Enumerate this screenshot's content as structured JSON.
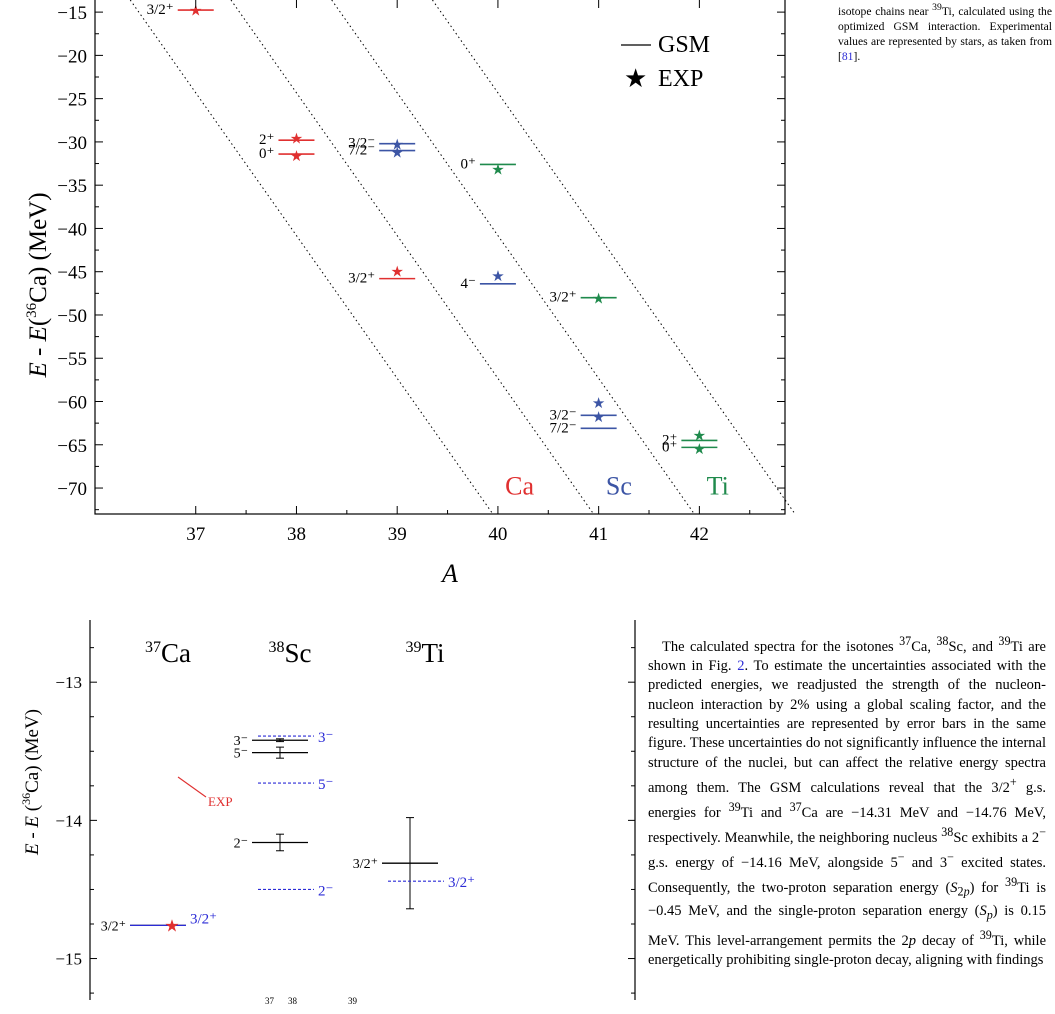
{
  "fig1": {
    "legend": {
      "gsm_label": "GSM",
      "exp_label": "EXP"
    },
    "chain_labels": [
      {
        "text": "Ca",
        "color": "#e03030",
        "x": 40.35,
        "y": -69.8
      },
      {
        "text": "Sc",
        "color": "#3c55a5",
        "x": 41.35,
        "y": -69.8
      },
      {
        "text": "Ti",
        "color": "#1f8a4c",
        "x": 42.35,
        "y": -69.8
      }
    ],
    "xlabel": "A",
    "ylabel": "E - E(36Ca) (MeV)",
    "chart_data": {
      "type": "scatter",
      "xlim": [
        36,
        42.85
      ],
      "ylim": [
        -73,
        -13.6
      ],
      "x_ticks": [
        "37",
        "38",
        "39",
        "40",
        "41",
        "42"
      ],
      "y_ticks": [
        "−15",
        "−20",
        "−25",
        "−30",
        "−35",
        "−40",
        "−45",
        "−50",
        "−55",
        "−60",
        "−65",
        "−70"
      ],
      "levels": [
        {
          "chain": "Ca",
          "A": 37,
          "gsm": -14.76,
          "exp": -14.8,
          "label": "3/2⁺",
          "color": "#e03030"
        },
        {
          "chain": "Ca",
          "A": 38,
          "gsm": -29.8,
          "exp": -29.6,
          "label": "2⁺",
          "color": "#e03030"
        },
        {
          "chain": "Ca",
          "A": 38,
          "gsm": -31.4,
          "exp": -31.6,
          "label": "0⁺",
          "color": "#e03030"
        },
        {
          "chain": "Ca",
          "A": 39,
          "gsm": -45.8,
          "exp": -45.0,
          "label": "3/2⁺",
          "color": "#e03030"
        },
        {
          "chain": "Sc",
          "A": 39,
          "gsm": -30.2,
          "exp": -30.3,
          "label": "3/2⁻",
          "color": "#3c55a5"
        },
        {
          "chain": "Sc",
          "A": 39,
          "gsm": -31.0,
          "exp": -31.2,
          "label": "7/2⁻",
          "color": "#3c55a5"
        },
        {
          "chain": "Sc",
          "A": 40,
          "gsm": -46.4,
          "exp": -45.5,
          "label": "4⁻",
          "color": "#3c55a5"
        },
        {
          "chain": "Sc",
          "A": 41,
          "gsm": -61.6,
          "exp": -60.2,
          "label": "3/2⁻",
          "color": "#3c55a5"
        },
        {
          "chain": "Sc",
          "A": 41,
          "gsm": -63.1,
          "exp": -61.8,
          "label": "7/2⁻",
          "color": "#3c55a5"
        },
        {
          "chain": "Ti",
          "A": 40,
          "gsm": -32.6,
          "exp": -33.2,
          "label": "0⁺",
          "color": "#1f8a4c"
        },
        {
          "chain": "Ti",
          "A": 41,
          "gsm": -48.0,
          "exp": -48.1,
          "label": "3/2⁺",
          "color": "#1f8a4c"
        },
        {
          "chain": "Ti",
          "A": 42,
          "gsm": -64.5,
          "exp": -63.9,
          "label": "2⁺",
          "color": "#1f8a4c"
        },
        {
          "chain": "Ti",
          "A": 42,
          "gsm": -65.3,
          "exp": -65.5,
          "label": "0⁺",
          "color": "#1f8a4c"
        }
      ],
      "guide_lines": [
        {
          "A0": 36.35,
          "E0": -13.6,
          "A1": 39.95,
          "E1": -73
        },
        {
          "A0": 37.35,
          "E0": -13.6,
          "A1": 40.95,
          "E1": -73
        },
        {
          "A0": 38.35,
          "E0": -13.6,
          "A1": 41.95,
          "E1": -73
        },
        {
          "A0": 39.35,
          "E0": -13.6,
          "A1": 42.95,
          "E1": -73
        }
      ]
    }
  },
  "fig2": {
    "ylabel": "E - E(36Ca) (MeV)",
    "exp_label": "EXP",
    "nuclei": [
      {
        "name": "Ca",
        "mass": "37"
      },
      {
        "name": "Sc",
        "mass": "38"
      },
      {
        "name": "Ti",
        "mass": "39"
      }
    ],
    "chart_data": {
      "type": "scatter",
      "ylim": [
        -15.3,
        -12.55
      ],
      "y_ticks": [
        "−13",
        "−14",
        "−15"
      ],
      "gsm_levels": [
        {
          "nucleus": "37Ca",
          "energy": -14.76,
          "err": 0.0,
          "label": "3/2⁺"
        },
        {
          "nucleus": "38Sc",
          "energy": -13.42,
          "err": 0.01,
          "label": "3⁻"
        },
        {
          "nucleus": "38Sc",
          "energy": -13.51,
          "err": 0.04,
          "label": "5⁻"
        },
        {
          "nucleus": "38Sc",
          "energy": -14.16,
          "err": 0.06,
          "label": "2⁻"
        },
        {
          "nucleus": "39Ti",
          "energy": -14.31,
          "err": 0.33,
          "label": "3/2⁺"
        }
      ],
      "ref_levels": [
        {
          "nucleus": "37Ca",
          "energy": -14.76,
          "label": "3/2⁺"
        },
        {
          "nucleus": "38Sc",
          "energy": -13.39,
          "label": "3⁻"
        },
        {
          "nucleus": "38Sc",
          "energy": -13.73,
          "label": "5⁻"
        },
        {
          "nucleus": "38Sc",
          "energy": -14.5,
          "label": "2⁻"
        },
        {
          "nucleus": "39Ti",
          "energy": -14.44,
          "label": "3/2⁺"
        }
      ],
      "exp_points": [
        {
          "nucleus": "37Ca",
          "energy": -14.76
        }
      ]
    }
  },
  "caption_fig1": {
    "prefix": "isotope chains near ",
    "mass": "39",
    "after": "Ti, calculated using the optimized GSM interaction. Experimental values are represented by stars, as taken from [",
    "ref": "81",
    "end": "]."
  },
  "lower_caption": {
    "mass1": "37",
    "mass2": "38",
    "mass3": "39"
  },
  "body": {
    "html": "The calculated spectra for the isotones <sup>37</sup>Ca, <sup>38</sup>Sc, and <sup>39</sup>Ti are shown in Fig. <span class=\"ref\">2</span>. To estimate the uncertainties associated with the predicted energies, we readjusted the strength of the nucleon-nucleon interaction by 2% using a global scaling factor, and the resulting uncertainties are represented by error bars in the same figure. These uncertainties do not significantly influence the internal structure of the nuclei, but can affect the relative energy spectra among them. The GSM calculations reveal that the 3/2<sup>+</sup> g.s. energies for <sup>39</sup>Ti and <sup>37</sup>Ca are −14.31 MeV and −14.76 MeV, respectively. Meanwhile, the neighboring nucleus <sup>38</sup>Sc exhibits a 2<sup>−</sup> g.s. energy of −14.16 MeV, alongside 5<sup>−</sup> and 3<sup>−</sup> excited states. Consequently, the two-proton separation energy (<i>S</i><sub>2<i>p</i></sub>) for <sup>39</sup>Ti is −0.45 MeV, and the single-proton separation energy (<i>S</i><sub><i>p</i></sub>) is 0.15 MeV. This level-arrangement permits the 2<i>p</i> decay of <sup>39</sup>Ti, while energetically prohibiting single-proton decay, aligning with findings"
  }
}
